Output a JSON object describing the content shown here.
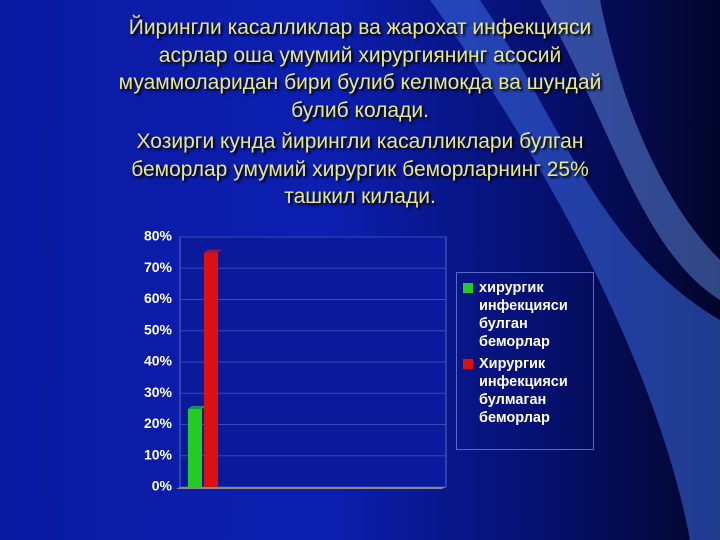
{
  "title_lines": [
    "Йирингли касалликлар ва жарохат инфекцияси",
    "асрлар оша умумий хирургиянинг асосий",
    "муаммоларидан бири булиб келмокда ва шундай",
    "булиб колади.",
    "Хозирги кунда йирингли касалликлари булган",
    "беморлар умумий хирургик беморларнинг 25%",
    "ташкил килади."
  ],
  "chart_data": {
    "type": "bar",
    "categories": [
      null
    ],
    "series": [
      {
        "name": "хирургик инфекцияси булган беморлар",
        "color": "#22cc22",
        "values": [
          25
        ]
      },
      {
        "name": "Хирургик инфекцияси булмаган беморлар",
        "color": "#dd1111",
        "values": [
          75
        ]
      }
    ],
    "ylim": [
      0,
      80
    ],
    "yticks": [
      {
        "value": 0,
        "label": "0%"
      },
      {
        "value": 10,
        "label": "10%"
      },
      {
        "value": 20,
        "label": "20%"
      },
      {
        "value": 30,
        "label": "30%"
      },
      {
        "value": 40,
        "label": "40%"
      },
      {
        "value": 50,
        "label": "50%"
      },
      {
        "value": 60,
        "label": "60%"
      },
      {
        "value": 70,
        "label": "70%"
      },
      {
        "value": 80,
        "label": "80%"
      }
    ],
    "grid": true,
    "legend": "right"
  }
}
